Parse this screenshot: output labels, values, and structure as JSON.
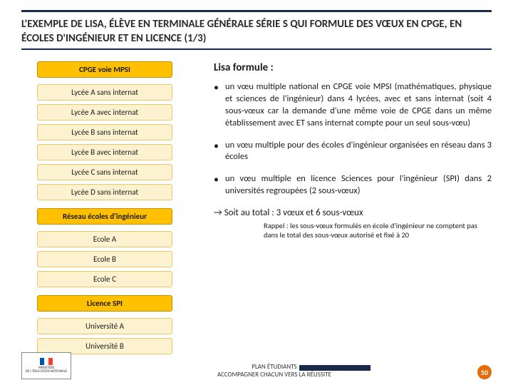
{
  "title": "L'EXEMPLE DE LISA, ÉLÈVE EN TERMINALE GÉNÉRALE SÉRIE S QUI FORMULE DES VŒUX EN CPGE, EN ÉCOLES D'INGÉNIEUR ET EN LICENCE (1/3)",
  "colors": {
    "rule": "#1a2a4a",
    "head_bg": "#ffc000",
    "head_border": "#bf9000",
    "sub_bg": "#fdf2d0",
    "sub_border": "#e8c96a",
    "badge": "#e36c09"
  },
  "left": {
    "group1": {
      "head": "CPGE voie MPSI",
      "items": [
        "Lycée A sans internat",
        "Lycée A avec internat",
        "Lycée B sans internat",
        "Lycée B avec internat",
        "Lycée C sans internat",
        "Lycée D sans internat"
      ]
    },
    "group2": {
      "head": "Réseau écoles d'ingénieur",
      "items": [
        "Ecole A",
        "Ecole B",
        "Ecole C"
      ]
    },
    "group3": {
      "head": "Licence SPI",
      "items": [
        "Université A",
        "Université B"
      ]
    }
  },
  "right": {
    "heading": "Lisa formule  :",
    "bullets": [
      "un vœu multiple national en CPGE voie MPSI (mathématiques, physique et sciences de l'ingénieur) dans 4 lycées, avec et sans internat (soit 4 sous-vœux car la demande d'une même voie de CPGE dans un même établissement avec ET sans internat compte pour un seul sous-vœu)",
      "un vœu multiple pour des écoles d'ingénieur organisées en réseau dans 3 écoles",
      "un vœu multiple en licence Sciences pour l'ingénieur (SPI) dans 2 universités regroupées (2 sous-vœux)"
    ],
    "total": "→  Soit au total : 3 vœux et 6 sous-vœux",
    "rappel": "Rappel : les sous-vœux formulés en école d'ingénieur ne comptent pas dans le total des sous-vœux autorisé et fixé à 20"
  },
  "footer": {
    "logo_top": "MINISTÈRE",
    "logo_bottom": "DE L'ÉDUCATION NATIONALE",
    "line1": "PLAN ÉTUDIANTS",
    "line2": "ACCOMPAGNER CHACUN VERS LA RÉUSSITE",
    "page": "50",
    "flag": [
      "#0055a4",
      "#ffffff",
      "#ef4135"
    ]
  }
}
